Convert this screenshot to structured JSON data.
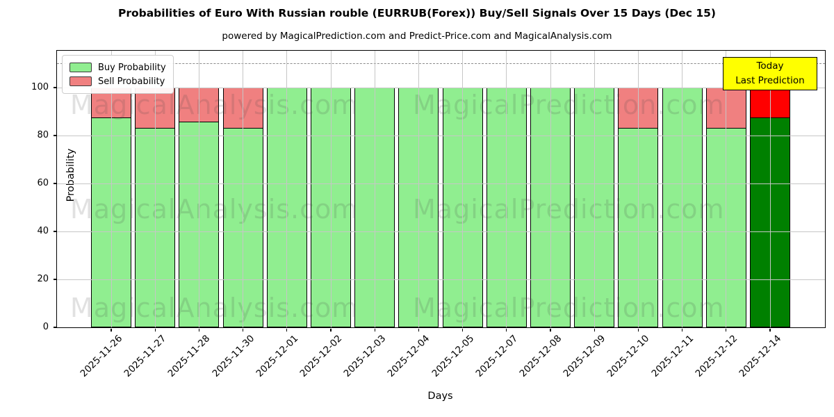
{
  "chart_data": {
    "type": "bar",
    "stacked": true,
    "title": "Probabilities of Euro With Russian rouble (EURRUB(Forex)) Buy/Sell Signals Over 15 Days (Dec 15)",
    "subtitle": "powered by MagicalPrediction.com and Predict-Price.com and MagicalAnalysis.com",
    "xlabel": "Days",
    "ylabel": "Probability",
    "ylim": [
      0,
      115.4
    ],
    "yticks": [
      0,
      20,
      40,
      60,
      80,
      100
    ],
    "grid": true,
    "dashed_guideline_y": 110,
    "legend_position": "upper-left",
    "categories": [
      "2025-11-26",
      "2025-11-27",
      "2025-11-28",
      "2025-11-30",
      "2025-12-01",
      "2025-12-02",
      "2025-12-03",
      "2025-12-04",
      "2025-12-05",
      "2025-12-07",
      "2025-12-08",
      "2025-12-09",
      "2025-12-10",
      "2025-12-11",
      "2025-12-12",
      "2025-12-14"
    ],
    "series": [
      {
        "name": "Buy Probability",
        "color": "#90ee90",
        "values": [
          87.5,
          83.3,
          85.7,
          83.3,
          100,
          100,
          100,
          100,
          100,
          100,
          100,
          100,
          83.3,
          100,
          83.3,
          87.5
        ]
      },
      {
        "name": "Sell Probability",
        "color": "#f08080",
        "values": [
          12.5,
          16.7,
          14.3,
          16.7,
          0,
          0,
          0,
          0,
          0,
          0,
          0,
          0,
          16.7,
          0,
          16.7,
          12.5
        ]
      }
    ],
    "today_bar": {
      "index": 15,
      "buy_color": "#008000",
      "sell_color": "#ff0000"
    }
  },
  "annotation": {
    "line1": "Today",
    "line2": "Last Prediction",
    "bg": "#ffff00"
  },
  "watermarks": {
    "left": "MagicalAnalysis.com",
    "right": "MagicalPrediction.com"
  },
  "colors": {
    "bar_edge": "#000000",
    "grid": "#c6c6c6",
    "dashed_line": "#8a8a8a"
  }
}
